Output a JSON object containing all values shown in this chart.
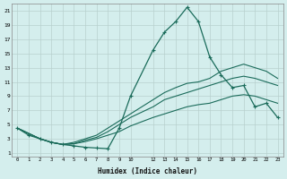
{
  "xlabel": "Humidex (Indice chaleur)",
  "bg_color": "#d4eeed",
  "grid_color": "#b8d0ce",
  "line_color": "#1a6b5a",
  "xlim": [
    -0.5,
    23.5
  ],
  "ylim": [
    0.5,
    22.0
  ],
  "xticks": [
    0,
    1,
    2,
    3,
    4,
    5,
    6,
    7,
    8,
    9,
    10,
    12,
    13,
    14,
    15,
    16,
    17,
    18,
    19,
    20,
    21,
    22,
    23
  ],
  "yticks": [
    1,
    3,
    5,
    7,
    9,
    11,
    13,
    15,
    17,
    19,
    21
  ],
  "series": {
    "line1_x": [
      0,
      1,
      2,
      3,
      4,
      5,
      6,
      7,
      8,
      9,
      10,
      12,
      13,
      14,
      15,
      16,
      17,
      18,
      19,
      20,
      21,
      22,
      23
    ],
    "line1_y": [
      4.5,
      3.5,
      3.0,
      2.5,
      2.2,
      2.0,
      1.8,
      1.7,
      1.6,
      4.5,
      9.0,
      15.5,
      18.0,
      19.5,
      21.5,
      19.5,
      14.5,
      12.0,
      10.2,
      10.5,
      7.5,
      8.0,
      6.0
    ],
    "line2_x": [
      0,
      2,
      3,
      4,
      5,
      6,
      7,
      8,
      9,
      10,
      12,
      13,
      14,
      15,
      16,
      17,
      18,
      19,
      20,
      21,
      22,
      23
    ],
    "line2_y": [
      4.5,
      3.0,
      2.5,
      2.2,
      2.5,
      3.0,
      3.5,
      4.5,
      5.5,
      6.5,
      8.5,
      9.5,
      10.2,
      10.8,
      11.0,
      11.5,
      12.5,
      13.0,
      13.5,
      13.0,
      12.5,
      11.5
    ],
    "line3_x": [
      0,
      2,
      3,
      4,
      5,
      6,
      7,
      8,
      9,
      10,
      12,
      13,
      14,
      15,
      16,
      17,
      18,
      19,
      20,
      21,
      22,
      23
    ],
    "line3_y": [
      4.5,
      3.0,
      2.5,
      2.2,
      2.3,
      2.8,
      3.2,
      4.0,
      5.0,
      6.0,
      7.5,
      8.5,
      9.0,
      9.5,
      10.0,
      10.5,
      11.0,
      11.5,
      11.8,
      11.5,
      11.0,
      10.5
    ],
    "line4_x": [
      0,
      2,
      3,
      4,
      5,
      6,
      7,
      8,
      9,
      10,
      12,
      13,
      14,
      15,
      16,
      17,
      18,
      19,
      20,
      21,
      22,
      23
    ],
    "line4_y": [
      4.5,
      3.0,
      2.5,
      2.2,
      2.3,
      2.6,
      3.0,
      3.5,
      4.0,
      4.8,
      6.0,
      6.5,
      7.0,
      7.5,
      7.8,
      8.0,
      8.5,
      9.0,
      9.2,
      9.0,
      8.5,
      8.0
    ]
  }
}
